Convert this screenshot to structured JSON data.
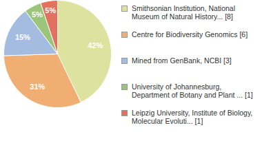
{
  "chart_data": {
    "type": "pie",
    "categories": [
      "Smithsonian Institution, National Museum of Natural History... [8]",
      "Centre for Biodiversity Genomics [6]",
      "Mined from GenBank, NCBI [3]",
      "University of Johannesburg, Department of Botany and Plant ... [1]",
      "Leipzig University, Institute of Biology, Molecular Evoluti... [1]"
    ],
    "values": [
      42,
      31,
      15,
      5,
      5
    ],
    "value_labels": [
      "42%",
      "31%",
      "15%",
      "5%",
      "5%"
    ],
    "colors": [
      "#dde39f",
      "#f0ae73",
      "#a4bce0",
      "#9cc57c",
      "#e0725e"
    ],
    "data_labels": true,
    "legend": "right"
  }
}
